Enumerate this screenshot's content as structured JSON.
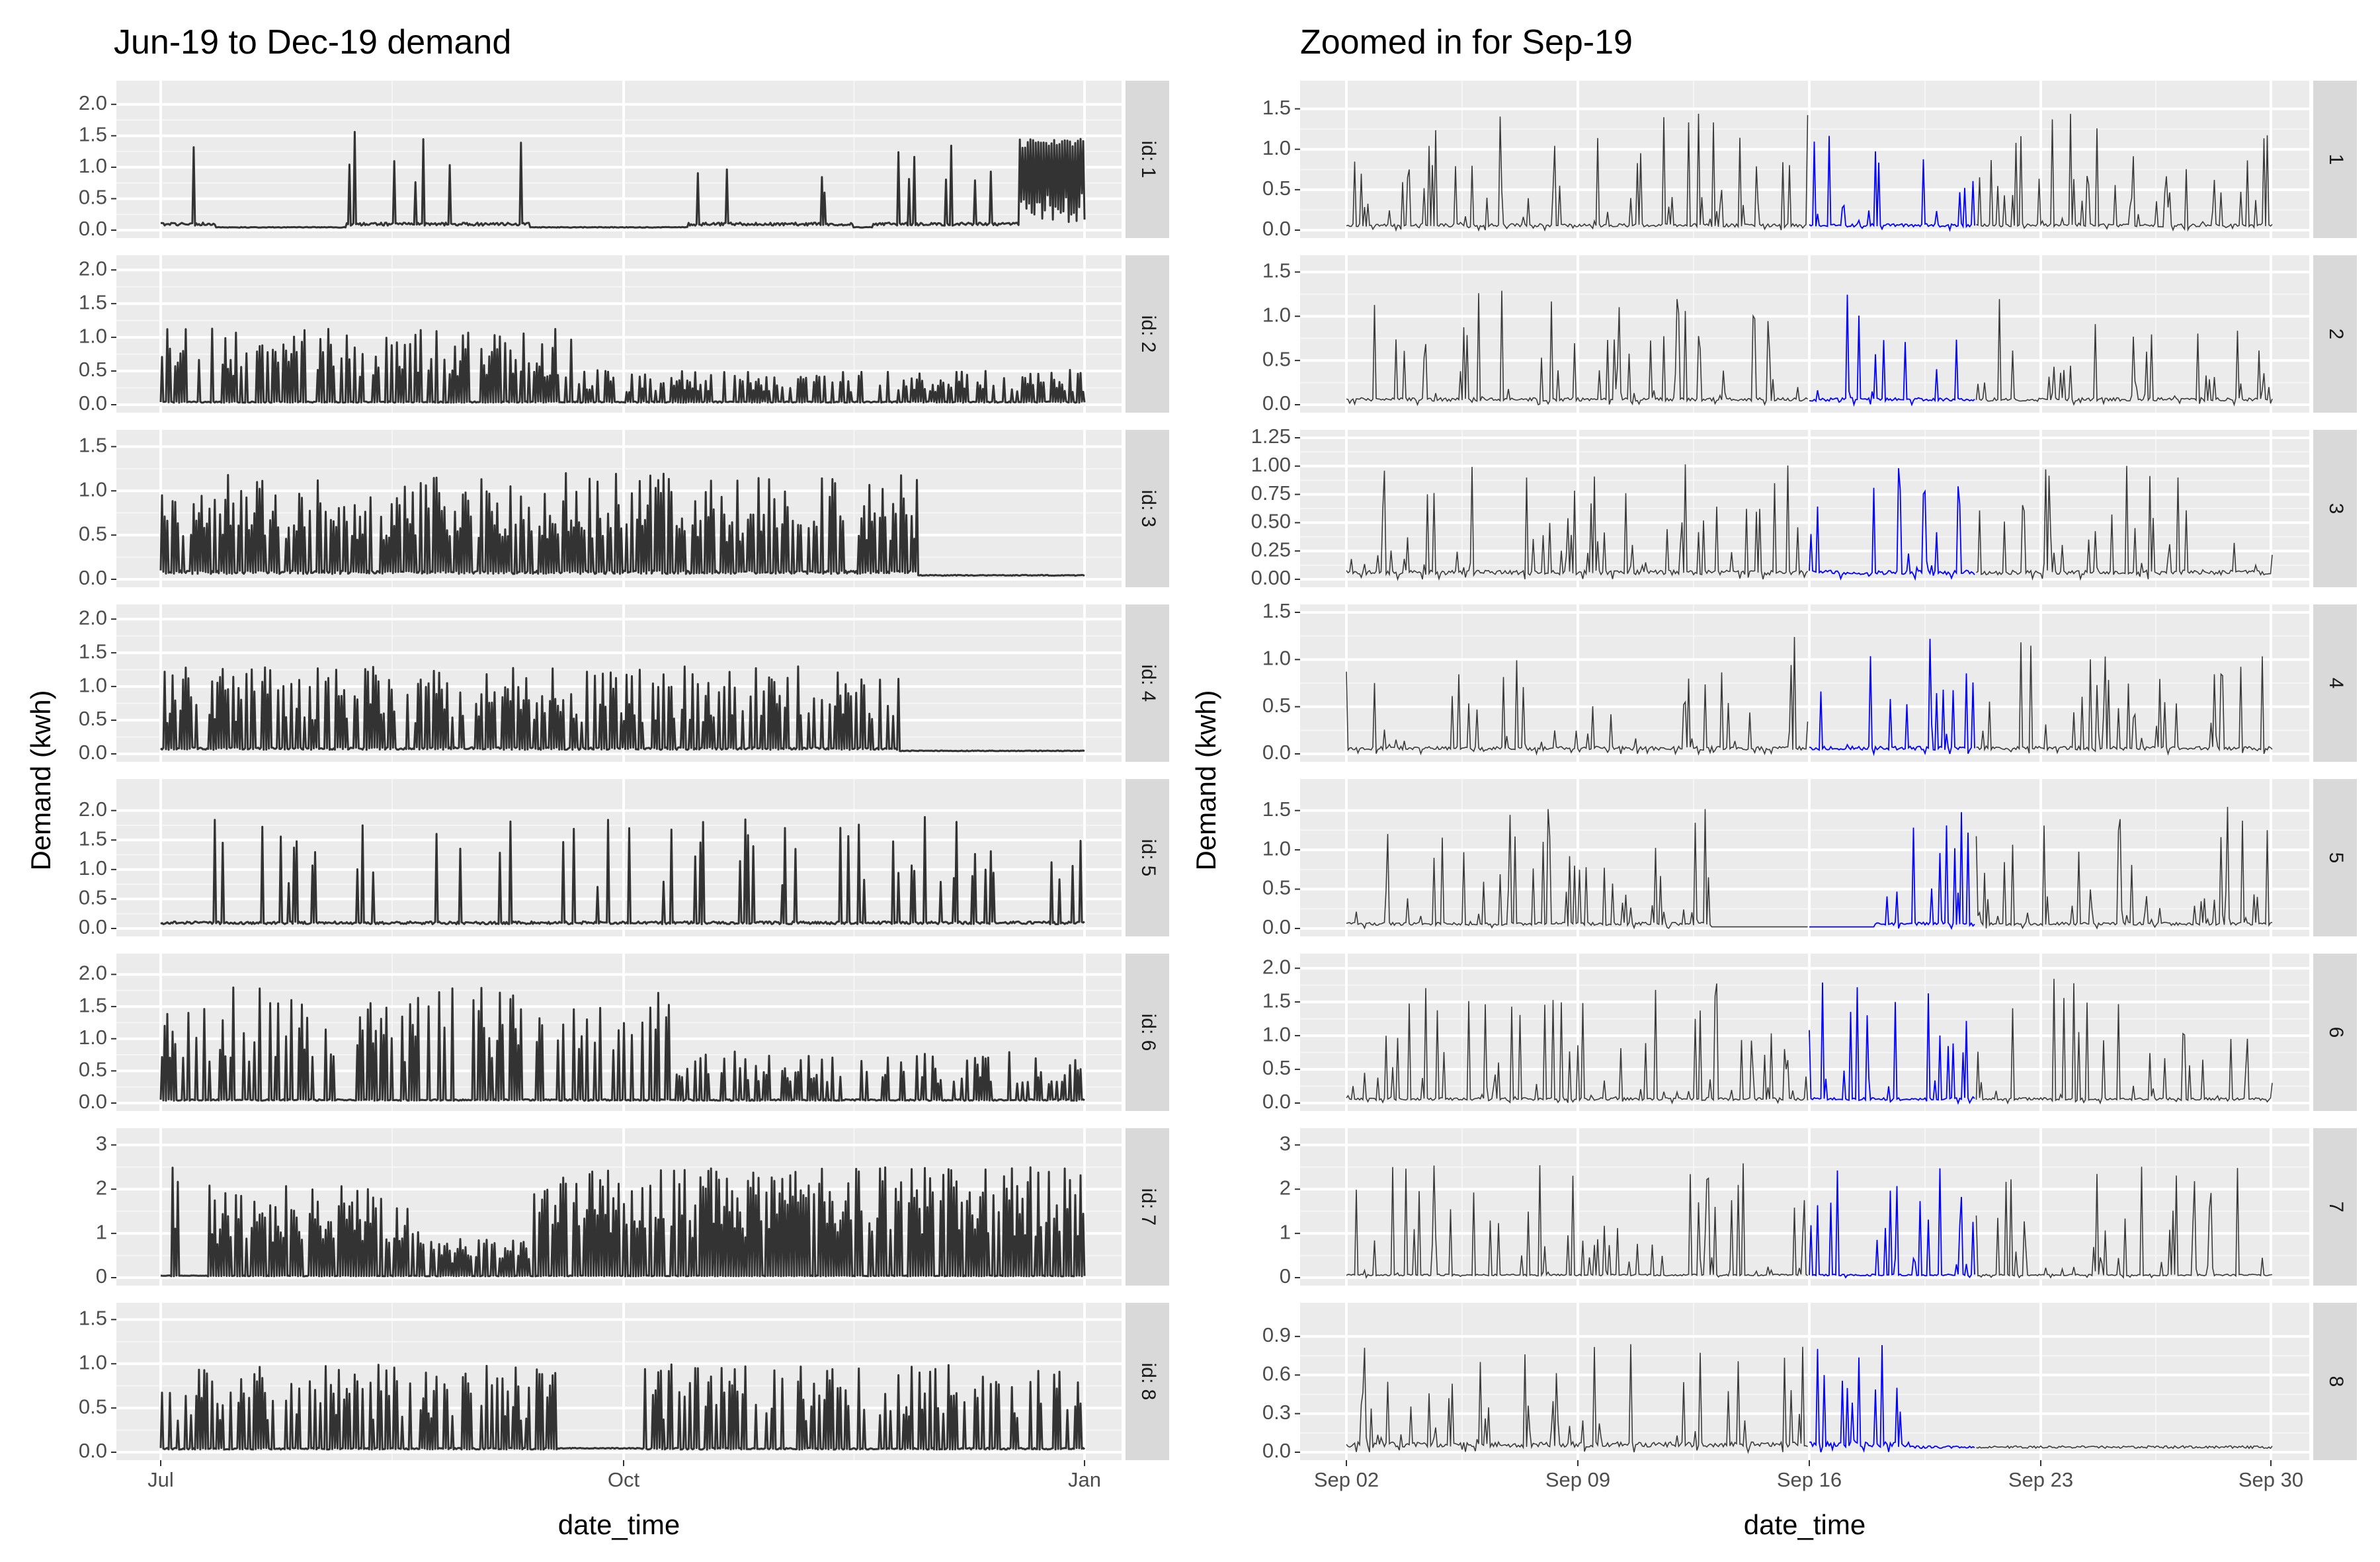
{
  "chart_data": [
    {
      "type": "line",
      "title": "Jun-19 to Dec-19 demand",
      "xlabel": "date_time",
      "ylabel": "Demand (kwh)",
      "x_ticks": [
        "Jul",
        "Oct",
        "Jan"
      ],
      "x_range": [
        "2019-07-01",
        "2020-01-01"
      ],
      "grid": true,
      "facets": [
        {
          "strip": "id: 1",
          "ylim": [
            0,
            2.25
          ],
          "yticks": [
            "0.0",
            "0.5",
            "1.0",
            "1.5",
            "2.0"
          ]
        },
        {
          "strip": "id: 2",
          "ylim": [
            0,
            2.1
          ],
          "yticks": [
            "0.0",
            "0.5",
            "1.0",
            "1.5",
            "2.0"
          ]
        },
        {
          "strip": "id: 3",
          "ylim": [
            0,
            1.6
          ],
          "yticks": [
            "0.0",
            "0.5",
            "1.0",
            "1.5"
          ]
        },
        {
          "strip": "id: 4",
          "ylim": [
            0,
            2.1
          ],
          "yticks": [
            "0.0",
            "0.5",
            "1.0",
            "1.5",
            "2.0"
          ]
        },
        {
          "strip": "id: 5",
          "ylim": [
            0,
            2.4
          ],
          "yticks": [
            "0.0",
            "0.5",
            "1.0",
            "1.5",
            "2.0"
          ]
        },
        {
          "strip": "id: 6",
          "ylim": [
            0,
            2.2
          ],
          "yticks": [
            "0.0",
            "0.5",
            "1.0",
            "1.5",
            "2.0"
          ]
        },
        {
          "strip": "id: 7",
          "ylim": [
            0,
            3.2
          ],
          "yticks": [
            "0",
            "1",
            "2",
            "3"
          ]
        },
        {
          "strip": "id: 8",
          "ylim": [
            0,
            1.6
          ],
          "yticks": [
            "0.0",
            "0.5",
            "1.0",
            "1.5"
          ]
        }
      ]
    },
    {
      "type": "line",
      "title": "Zoomed in for Sep-19",
      "xlabel": "date_time",
      "ylabel": "Demand (kwh)",
      "x_ticks": [
        "Sep 02",
        "Sep 09",
        "Sep 16",
        "Sep 23",
        "Sep 30"
      ],
      "x_range": [
        "2019-09-01",
        "2019-10-01"
      ],
      "highlight_range": [
        "2019-09-16",
        "2019-09-21"
      ],
      "colors": {
        "base": "#000000",
        "highlight": "#0000ff"
      },
      "grid": true,
      "facets": [
        {
          "strip": "1",
          "ylim": [
            0,
            1.75
          ],
          "yticks": [
            "0.0",
            "0.5",
            "1.0",
            "1.5"
          ]
        },
        {
          "strip": "2",
          "ylim": [
            0,
            1.6
          ],
          "yticks": [
            "0.0",
            "0.5",
            "1.0",
            "1.5"
          ]
        },
        {
          "strip": "3",
          "ylim": [
            0,
            1.25
          ],
          "yticks": [
            "0.00",
            "0.25",
            "0.50",
            "0.75",
            "1.00",
            "1.25"
          ]
        },
        {
          "strip": "4",
          "ylim": [
            0,
            1.5
          ],
          "yticks": [
            "0.0",
            "0.5",
            "1.0",
            "1.5"
          ]
        },
        {
          "strip": "5",
          "ylim": [
            0,
            1.8
          ],
          "yticks": [
            "0.0",
            "0.5",
            "1.0",
            "1.5"
          ]
        },
        {
          "strip": "6",
          "ylim": [
            0,
            2.1
          ],
          "yticks": [
            "0.0",
            "0.5",
            "1.0",
            "1.5",
            "2.0"
          ]
        },
        {
          "strip": "7",
          "ylim": [
            0,
            3.2
          ],
          "yticks": [
            "0",
            "1",
            "2",
            "3"
          ]
        },
        {
          "strip": "8",
          "ylim": [
            0,
            1.1
          ],
          "yticks": [
            "0.0",
            "0.3",
            "0.6",
            "0.9"
          ]
        }
      ]
    }
  ]
}
